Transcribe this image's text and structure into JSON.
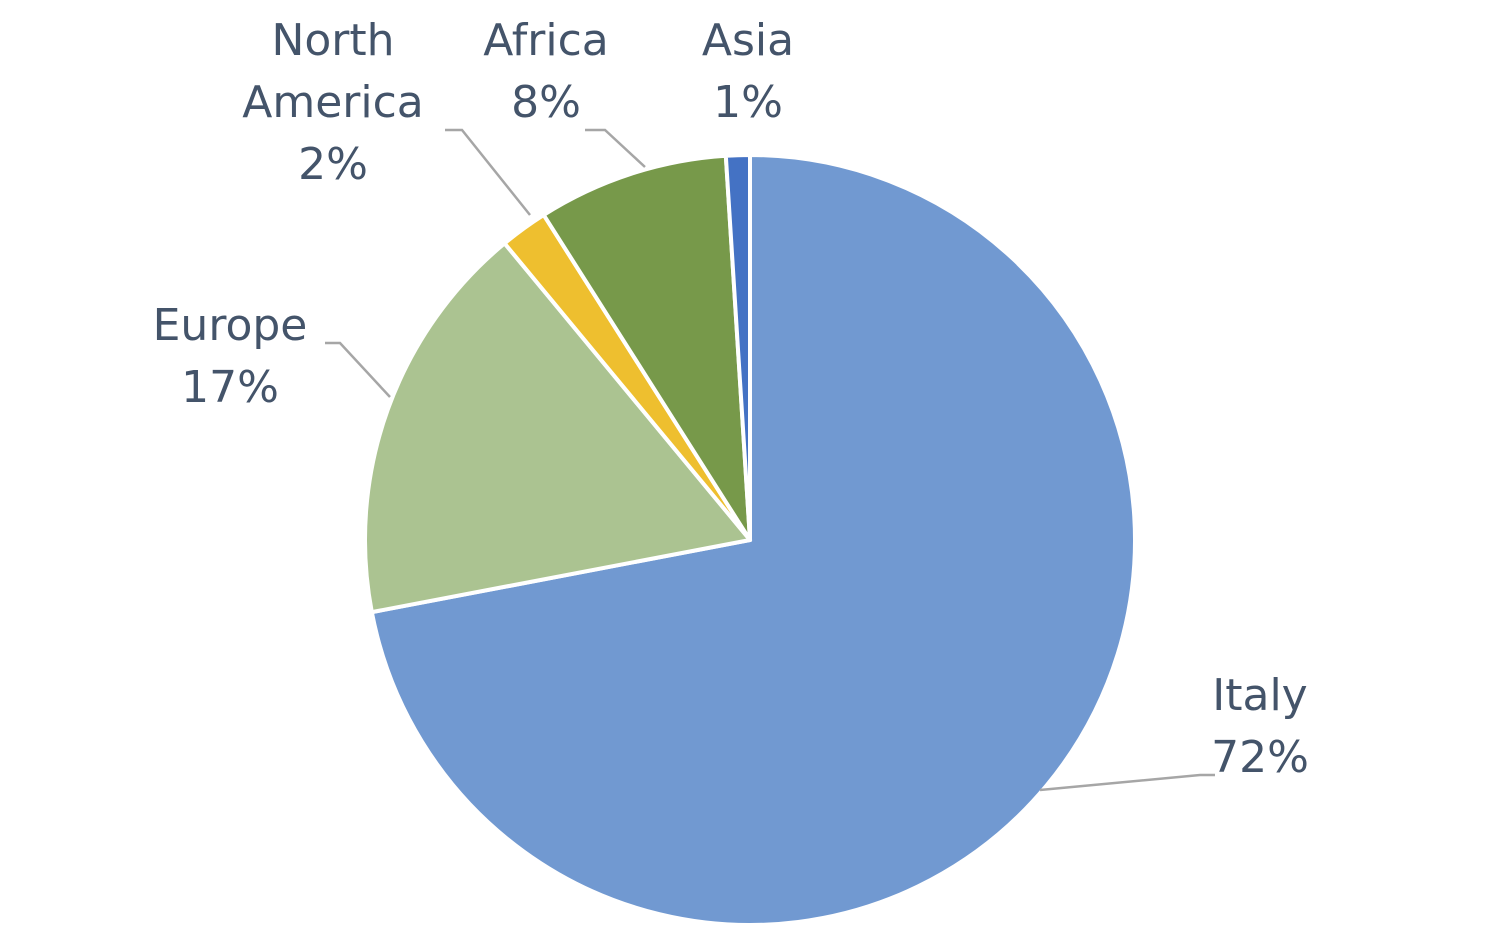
{
  "chart_data": {
    "type": "pie",
    "categories": [
      "Italy",
      "Europe",
      "North America",
      "Africa",
      "Asia"
    ],
    "values": [
      72,
      17,
      2,
      8,
      1
    ],
    "value_labels": [
      "72%",
      "17%",
      "2%",
      "8%",
      "1%"
    ],
    "colors": [
      "#7199d1",
      "#abc391",
      "#eebf2f",
      "#77994a",
      "#4472c4"
    ]
  }
}
